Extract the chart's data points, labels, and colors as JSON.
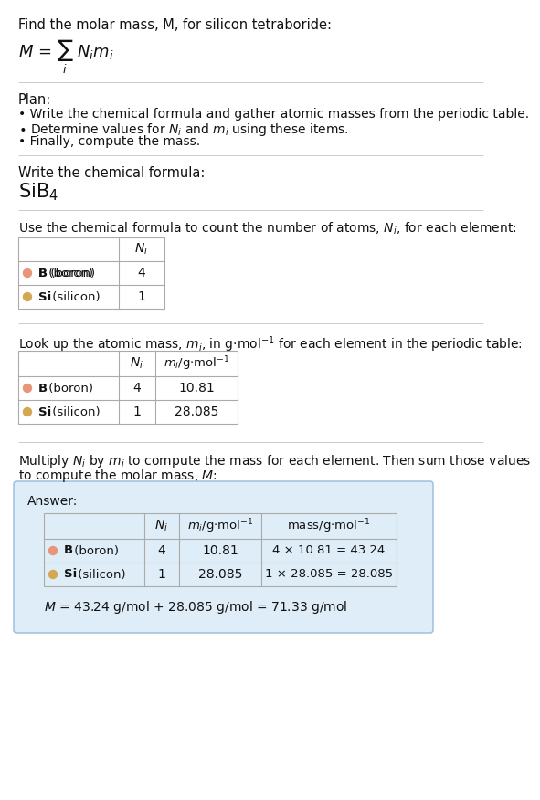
{
  "bg_color": "#ffffff",
  "text_color": "#111111",
  "boron_color": "#e8967a",
  "silicon_color": "#d4a853",
  "table_border_color": "#aaaaaa",
  "answer_border": "#99bbdd",
  "answer_bg": "#deedf8",
  "section_divider_color": "#cccccc",
  "title": "Find the molar mass, M, for silicon tetraboride:",
  "plan_header": "Plan:",
  "plan_bullet1": "• Write the chemical formula and gather atomic masses from the periodic table.",
  "plan_bullet2": "• Determine values for N_i and m_i using these items.",
  "plan_bullet3": "• Finally, compute the mass.",
  "step1_header": "Write the chemical formula:",
  "step2_header": "Use the chemical formula to count the number of atoms, N_i, for each element:",
  "step3_header": "Look up the atomic mass, m_i, in g·mol⁻¹ for each element in the periodic table:",
  "step4_header1": "Multiply N_i by m_i to compute the mass for each element. Then sum those values",
  "step4_header2": "to compute the molar mass, M:",
  "answer_label": "Answer:",
  "final_line": "M = 43.24 g/mol + 28.085 g/mol = 71.33 g/mol",
  "row1_elem": "B (boron)",
  "row1_ni": "4",
  "row1_mi": "10.81",
  "row1_mass": "4 × 10.81 = 43.24",
  "row2_elem": "Si (silicon)",
  "row2_ni": "1",
  "row2_mi": "28.085",
  "row2_mass": "1 × 28.085 = 28.085"
}
